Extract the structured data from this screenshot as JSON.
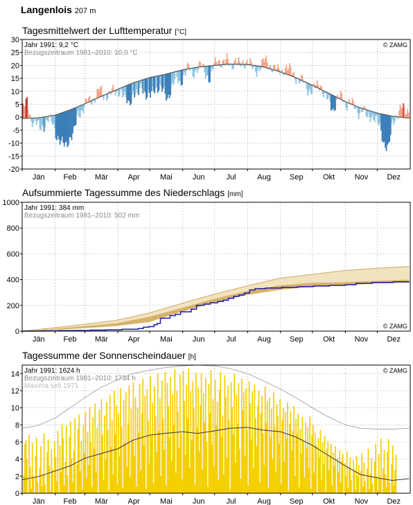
{
  "station": {
    "name": "Langenlois",
    "altitude": "207 m"
  },
  "copyright": "© ZAMG",
  "months": [
    "Jän",
    "Feb",
    "Mär",
    "Apr",
    "Mai",
    "Jun",
    "Jul",
    "Aug",
    "Sep",
    "Okt",
    "Nov",
    "Dez"
  ],
  "colors": {
    "warm_light": "#f2a58a",
    "warm_dark": "#c8352a",
    "cold_light": "#8fc4e2",
    "cold_dark": "#3d7fb8",
    "normal_line": "#555555",
    "precip_band_dark": "#d7b26a",
    "precip_band_light": "#f2e3bf",
    "precip_line": "#1a1aa8",
    "sun_bar": "#f4cf00",
    "sun_normal": "#333333",
    "sun_max": "#aaaaaa"
  },
  "chart_data": [
    {
      "id": "temperature",
      "type": "bar",
      "title": "Tagesmittelwert der Lufttemperatur",
      "unit": "[°C]",
      "legend": [
        "Jahr 1991: 9,2 °C",
        "Bezugszeitraum 1981–2010: 10,0 °C"
      ],
      "ylim": [
        -20,
        30
      ],
      "yticks": [
        -20,
        -15,
        -10,
        -5,
        0,
        5,
        10,
        15,
        20,
        25,
        30
      ],
      "normal_daily_mean": [
        [
          1,
          -0.5
        ],
        [
          15,
          -0.3
        ],
        [
          32,
          0.8
        ],
        [
          46,
          2.8
        ],
        [
          60,
          5.2
        ],
        [
          74,
          7.8
        ],
        [
          91,
          10.8
        ],
        [
          105,
          13.2
        ],
        [
          121,
          15.3
        ],
        [
          135,
          16.5
        ],
        [
          152,
          18.3
        ],
        [
          166,
          19.3
        ],
        [
          182,
          20.0
        ],
        [
          196,
          20.5
        ],
        [
          213,
          20.3
        ],
        [
          227,
          19.5
        ],
        [
          244,
          17.5
        ],
        [
          258,
          15.3
        ],
        [
          274,
          12.3
        ],
        [
          288,
          9.5
        ],
        [
          305,
          6.0
        ],
        [
          319,
          3.6
        ],
        [
          335,
          1.6
        ],
        [
          349,
          0.4
        ],
        [
          365,
          -0.4
        ]
      ],
      "observed_daily_mean": [
        [
          1,
          3
        ],
        [
          5,
          6
        ],
        [
          9,
          -1
        ],
        [
          13,
          -2
        ],
        [
          17,
          -4
        ],
        [
          21,
          -3
        ],
        [
          25,
          -1
        ],
        [
          29,
          -2
        ],
        [
          33,
          -7
        ],
        [
          37,
          -10
        ],
        [
          41,
          -11
        ],
        [
          45,
          -8
        ],
        [
          49,
          -6
        ],
        [
          53,
          1
        ],
        [
          57,
          3
        ],
        [
          61,
          6
        ],
        [
          65,
          6
        ],
        [
          69,
          8
        ],
        [
          73,
          11
        ],
        [
          77,
          8
        ],
        [
          81,
          9
        ],
        [
          85,
          10
        ],
        [
          89,
          9
        ],
        [
          93,
          11
        ],
        [
          97,
          7
        ],
        [
          101,
          5
        ],
        [
          105,
          10
        ],
        [
          109,
          8
        ],
        [
          113,
          12
        ],
        [
          117,
          9
        ],
        [
          121,
          8
        ],
        [
          125,
          11
        ],
        [
          129,
          12
        ],
        [
          133,
          10
        ],
        [
          137,
          7
        ],
        [
          141,
          12
        ],
        [
          145,
          15
        ],
        [
          149,
          13
        ],
        [
          153,
          17
        ],
        [
          157,
          19
        ],
        [
          161,
          17
        ],
        [
          165,
          19
        ],
        [
          169,
          20
        ],
        [
          173,
          17
        ],
        [
          177,
          15
        ],
        [
          181,
          20
        ],
        [
          185,
          22
        ],
        [
          189,
          21
        ],
        [
          193,
          22
        ],
        [
          197,
          20
        ],
        [
          201,
          22
        ],
        [
          205,
          20
        ],
        [
          209,
          21
        ],
        [
          213,
          22
        ],
        [
          217,
          19
        ],
        [
          221,
          18
        ],
        [
          225,
          20
        ],
        [
          229,
          22
        ],
        [
          233,
          20
        ],
        [
          237,
          19
        ],
        [
          241,
          18
        ],
        [
          245,
          18
        ],
        [
          249,
          19
        ],
        [
          253,
          18
        ],
        [
          257,
          16
        ],
        [
          261,
          14
        ],
        [
          265,
          14
        ],
        [
          269,
          11
        ],
        [
          273,
          10
        ],
        [
          277,
          12
        ],
        [
          281,
          13
        ],
        [
          285,
          8
        ],
        [
          289,
          6
        ],
        [
          293,
          3
        ],
        [
          297,
          7
        ],
        [
          301,
          8
        ],
        [
          305,
          5
        ],
        [
          309,
          6
        ],
        [
          313,
          4
        ],
        [
          317,
          2
        ],
        [
          321,
          3
        ],
        [
          325,
          0
        ],
        [
          329,
          1
        ],
        [
          333,
          -1
        ],
        [
          337,
          -4
        ],
        [
          341,
          -10
        ],
        [
          345,
          -12
        ],
        [
          349,
          -2
        ],
        [
          353,
          1
        ],
        [
          357,
          4
        ],
        [
          361,
          2
        ],
        [
          365,
          3
        ]
      ]
    },
    {
      "id": "precipitation",
      "type": "area",
      "title": "Aufsummierte Tagessumme des Niederschlags",
      "unit": "[mm]",
      "legend": [
        "Jahr 1991: 384 mm",
        "Bezugszeitraum 1981–2010: 502 mm"
      ],
      "ylim": [
        0,
        1000
      ],
      "yticks": [
        0,
        200,
        400,
        600,
        800,
        1000
      ],
      "observed_cumulative": [
        [
          1,
          0
        ],
        [
          20,
          2
        ],
        [
          35,
          4
        ],
        [
          50,
          5
        ],
        [
          65,
          8
        ],
        [
          80,
          10
        ],
        [
          95,
          15
        ],
        [
          110,
          20
        ],
        [
          115,
          30
        ],
        [
          120,
          35
        ],
        [
          125,
          50
        ],
        [
          128,
          60
        ],
        [
          131,
          100
        ],
        [
          140,
          120
        ],
        [
          145,
          130
        ],
        [
          150,
          150
        ],
        [
          160,
          170
        ],
        [
          165,
          200
        ],
        [
          172,
          210
        ],
        [
          178,
          220
        ],
        [
          185,
          230
        ],
        [
          190,
          240
        ],
        [
          195,
          255
        ],
        [
          200,
          270
        ],
        [
          205,
          280
        ],
        [
          210,
          295
        ],
        [
          215,
          320
        ],
        [
          220,
          330
        ],
        [
          230,
          335
        ],
        [
          245,
          340
        ],
        [
          260,
          345
        ],
        [
          275,
          350
        ],
        [
          290,
          355
        ],
        [
          305,
          360
        ],
        [
          315,
          370
        ],
        [
          330,
          378
        ],
        [
          350,
          383
        ],
        [
          365,
          384
        ]
      ],
      "normal_cumulative": [
        [
          1,
          0
        ],
        [
          31,
          26
        ],
        [
          59,
          52
        ],
        [
          90,
          85
        ],
        [
          120,
          140
        ],
        [
          151,
          215
        ],
        [
          181,
          285
        ],
        [
          212,
          350
        ],
        [
          243,
          410
        ],
        [
          273,
          440
        ],
        [
          304,
          470
        ],
        [
          334,
          488
        ],
        [
          365,
          502
        ]
      ],
      "band_inner": [
        [
          1,
          0
        ],
        [
          31,
          18
        ],
        [
          59,
          38
        ],
        [
          90,
          62
        ],
        [
          120,
          110
        ],
        [
          151,
          180
        ],
        [
          181,
          250
        ],
        [
          212,
          310
        ],
        [
          243,
          355
        ],
        [
          273,
          375
        ],
        [
          304,
          380
        ],
        [
          334,
          390
        ],
        [
          365,
          400
        ]
      ],
      "band_outer": [
        [
          1,
          0
        ],
        [
          31,
          10
        ],
        [
          59,
          22
        ],
        [
          90,
          40
        ],
        [
          120,
          70
        ],
        [
          151,
          150
        ],
        [
          181,
          220
        ],
        [
          212,
          280
        ],
        [
          243,
          320
        ],
        [
          273,
          345
        ],
        [
          304,
          355
        ],
        [
          334,
          370
        ],
        [
          365,
          375
        ]
      ]
    },
    {
      "id": "sunshine",
      "type": "bar",
      "title": "Tagessumme der Sonnenscheindauer",
      "unit": "[h]",
      "legend": [
        "Jahr 1991: 1624 h",
        "Bezugszeitraum 1981–2010: 1734 h",
        "Maxima seit 1971"
      ],
      "ylim": [
        0,
        15
      ],
      "yticks": [
        0,
        2,
        4,
        6,
        8,
        10,
        12,
        14
      ],
      "maxima": [
        [
          1,
          7.6
        ],
        [
          15,
          7.9
        ],
        [
          32,
          8.8
        ],
        [
          46,
          10
        ],
        [
          60,
          11.2
        ],
        [
          74,
          12.3
        ],
        [
          91,
          13.3
        ],
        [
          105,
          14
        ],
        [
          121,
          14.4
        ],
        [
          135,
          14.7
        ],
        [
          152,
          14.9
        ],
        [
          166,
          15
        ],
        [
          182,
          14.9
        ],
        [
          196,
          14.6
        ],
        [
          213,
          14
        ],
        [
          227,
          13.2
        ],
        [
          244,
          12.2
        ],
        [
          258,
          11.2
        ],
        [
          274,
          10
        ],
        [
          288,
          9
        ],
        [
          305,
          8
        ],
        [
          319,
          7.6
        ],
        [
          335,
          7.5
        ],
        [
          349,
          7.5
        ],
        [
          365,
          7.6
        ]
      ],
      "normal": [
        [
          1,
          1.6
        ],
        [
          15,
          1.9
        ],
        [
          32,
          2.6
        ],
        [
          46,
          3.2
        ],
        [
          60,
          4.1
        ],
        [
          74,
          4.6
        ],
        [
          91,
          5.2
        ],
        [
          105,
          6.2
        ],
        [
          121,
          6.8
        ],
        [
          135,
          7
        ],
        [
          152,
          7.2
        ],
        [
          166,
          7.0
        ],
        [
          182,
          7.3
        ],
        [
          196,
          7.6
        ],
        [
          213,
          7.7
        ],
        [
          227,
          7.4
        ],
        [
          244,
          7.2
        ],
        [
          258,
          6.6
        ],
        [
          274,
          5.6
        ],
        [
          288,
          4.5
        ],
        [
          305,
          3.2
        ],
        [
          319,
          2.2
        ],
        [
          335,
          1.8
        ],
        [
          349,
          1.5
        ],
        [
          365,
          1.7
        ]
      ],
      "daily_hours": [
        0,
        2.1,
        5.8,
        6.2,
        4.0,
        0,
        6.8,
        3.1,
        0.5,
        5.9,
        2.0,
        0,
        4.4,
        6.5,
        1.3,
        0,
        3.0,
        5.5,
        0.8,
        2.2,
        7.0,
        1.0,
        0,
        4.8,
        6.3,
        3.2,
        0.2,
        5.1,
        2.8,
        0,
        6.0,
        4.2,
        1.4,
        7.3,
        0,
        5.6,
        2.5,
        8.1,
        6.4,
        0.9,
        3.7,
        7.9,
        2.1,
        0,
        6.6,
        8.4,
        4.1,
        1.3,
        5.0,
        8.8,
        0,
        3.4,
        7.5,
        9.2,
        2.6,
        6.1,
        0.4,
        8.0,
        4.7,
        9.5,
        1.8,
        7.2,
        3.3,
        10.1,
        6.0,
        0.7,
        8.9,
        5.2,
        10.5,
        2.4,
        7.7,
        0,
        9.8,
        4.6,
        11.0,
        6.8,
        1.5,
        9.1,
        3.9,
        10.7,
        7.4,
        0.3,
        11.5,
        5.4,
        8.6,
        2.2,
        12.0,
        6.9,
        10.3,
        1.1,
        9.4,
        4.3,
        12.3,
        7.8,
        0.6,
        10.9,
        5.9,
        11.8,
        3.1,
        8.2,
        12.6,
        1.9,
        9.9,
        6.3,
        13.0,
        4.4,
        11.2,
        0.8,
        10.0,
        7.1,
        12.8,
        2.7,
        9.3,
        13.4,
        5.6,
        11.4,
        0.5,
        12.2,
        8.5,
        3.5,
        13.7,
        6.7,
        10.6,
        1.2,
        12.5,
        9.0,
        4.8,
        14.0,
        7.3,
        11.1,
        2.0,
        13.2,
        8.7,
        5.1,
        14.2,
        0.9,
        12.9,
        10.2,
        6.5,
        13.6,
        3.8,
        11.6,
        8.0,
        14.5,
        2.4,
        12.0,
        9.6,
        5.3,
        13.9,
        7.0,
        1.6,
        14.3,
        10.8,
        4.5,
        12.7,
        8.8,
        14.6,
        3.0,
        11.9,
        6.2,
        13.1,
        9.9,
        1.0,
        14.1,
        7.7,
        12.4,
        4.9,
        10.3,
        14.0,
        2.8,
        11.7,
        8.3,
        13.5,
        6.0,
        0.8,
        12.8,
        9.4,
        14.4,
        5.7,
        11.0,
        3.2,
        13.3,
        7.9,
        10.7,
        1.5,
        12.1,
        14.2,
        6.6,
        9.1,
        2.2,
        13.8,
        11.3,
        4.1,
        12.6,
        8.6,
        0.4,
        13.0,
        10.1,
        6.9,
        14.0,
        3.6,
        11.5,
        8.1,
        12.9,
        5.2,
        1.7,
        13.4,
        9.7,
        11.8,
        4.4,
        12.3,
        7.4,
        0.9,
        13.1,
        10.5,
        6.3,
        11.9,
        2.9,
        12.7,
        8.8,
        5.5,
        10.2,
        12.0,
        1.3,
        9.4,
        11.4,
        7.0,
        3.3,
        12.5,
        8.2,
        10.8,
        0.6,
        11.2,
        6.6,
        9.9,
        4.0,
        11.8,
        7.8,
        2.5,
        10.4,
        9.0,
        5.8,
        11.0,
        1.1,
        8.6,
        10.0,
        3.7,
        9.5,
        6.4,
        10.6,
        0.3,
        8.1,
        9.6,
        5.0,
        7.3,
        10.2,
        2.0,
        8.7,
        6.9,
        9.3,
        0.7,
        7.5,
        4.6,
        8.9,
        6.1,
        1.8,
        8.3,
        5.3,
        7.7,
        3.0,
        9.0,
        0.5,
        6.8,
        8.0,
        2.4,
        7.1,
        5.6,
        0,
        6.5,
        4.2,
        7.4,
        1.6,
        5.9,
        3.4,
        6.7,
        0.2,
        5.2,
        6.1,
        2.7,
        4.5,
        5.8,
        0.9,
        4.8,
        3.2,
        5.5,
        0,
        4.1,
        2.5,
        5.0,
        1.2,
        3.8,
        4.6,
        0,
        3.5,
        2.0,
        4.9,
        0.6,
        3.1,
        4.2,
        1.5,
        0,
        3.9,
        2.8,
        0.4,
        4.4,
        1.9,
        3.3,
        0,
        2.6,
        4.7,
        0.8,
        3.6,
        1.4,
        0,
        2.9,
        5.2,
        0.5,
        2.3,
        4.1,
        1.1,
        0,
        3.7,
        5.8,
        2.0,
        0.3,
        4.6,
        1.7,
        6.4,
        0,
        3.0,
        5.1,
        2.2,
        0.7,
        4.8,
        6.3,
        1.2,
        0,
        3.4,
        5.6,
        0.9,
        2.7,
        4.5
      ]
    }
  ]
}
